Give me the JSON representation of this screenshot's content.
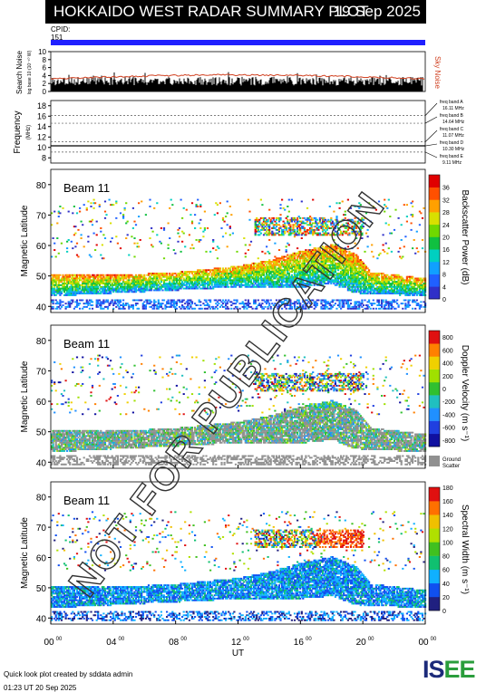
{
  "header": {
    "title": "HOKKAIDO WEST RADAR SUMMARY PLOT",
    "date": "19 Sep 2025",
    "cpid_label": "CPID:",
    "cpid_value": "151"
  },
  "watermark": "NOT FOR PUBLICATION",
  "noise_panel": {
    "ylabel": "Search Noise",
    "ylabel_small": "log base 10 (10⁻¹⁰ W)",
    "yticks": [
      "0",
      "2",
      "4",
      "6",
      "8",
      "10"
    ],
    "sky_label": "Sky Noise"
  },
  "freq_panel": {
    "ylabel": "Frequency",
    "unit": "(MHz)",
    "yticks": [
      "8",
      "10",
      "12",
      "14",
      "16",
      "18"
    ],
    "bands": [
      {
        "name": "freq band A",
        "value": "16.11 MHz"
      },
      {
        "name": "freq band B",
        "value": "14.64 MHz"
      },
      {
        "name": "freq band C",
        "value": "11.07 MHz"
      },
      {
        "name": "freq band D",
        "value": "10.30 MHz"
      },
      {
        "name": "freq band E",
        "value": "9.11 MHz"
      }
    ]
  },
  "panels": [
    {
      "beam": "Beam 11",
      "ylabel": "Magnetic Latitude",
      "cbar_label": "Backscatter Power (dB)",
      "cbar_ticks": [
        "0",
        "4",
        "8",
        "12",
        "16",
        "20",
        "24",
        "28",
        "32",
        "36"
      ]
    },
    {
      "beam": "Beam 11",
      "ylabel": "Magnetic Latitude",
      "cbar_label": "Doppler Velocity (m s⁻¹)",
      "cbar_ticks": [
        "800",
        "600",
        "400",
        "200",
        "0",
        "-200",
        "-400",
        "-600",
        "-800"
      ],
      "ground_label": [
        "Ground",
        "Scatter"
      ]
    },
    {
      "beam": "Beam 11",
      "ylabel": "Magnetic Latitude",
      "cbar_label": "Spectral Width (m s⁻¹)",
      "cbar_ticks": [
        "0",
        "20",
        "40",
        "60",
        "80",
        "100",
        "120",
        "140",
        "160",
        "180"
      ]
    }
  ],
  "chart_data": {
    "type": "heatmap",
    "xlabel": "UT",
    "x_ticks": [
      "00",
      "04",
      "08",
      "12",
      "16",
      "20",
      "00"
    ],
    "x_tick_sup": "00",
    "y_ticks": [
      "40",
      "50",
      "60",
      "70",
      "80"
    ],
    "xlim_hours": [
      0,
      24
    ],
    "ylim": [
      38,
      85
    ],
    "scatter_band_lower_edge": {
      "hours": [
        0,
        4,
        8,
        12,
        16,
        18,
        19.5,
        24
      ],
      "mlat": [
        44,
        45,
        46,
        47,
        47,
        48,
        45,
        44
      ]
    },
    "scatter_band_upper_edge": {
      "hours": [
        0,
        4,
        8,
        12,
        14,
        16,
        18,
        19.5,
        20.5,
        24
      ],
      "mlat": [
        50,
        50,
        51,
        53,
        55,
        58,
        60,
        57,
        51,
        49
      ]
    },
    "high_lat_patch_mlat": [
      63,
      69
    ],
    "spectral_width_high_patch": {
      "hours": [
        17,
        21
      ],
      "mlat": [
        64,
        70
      ]
    }
  },
  "footer": {
    "credit": "Quick look plot created by sddata admin",
    "timestamp": "01:23 UT 20 Sep 2025",
    "logo_a": "IS",
    "logo_b": "EE"
  },
  "colors": {
    "power_scale": [
      "#3030c8",
      "#2060ff",
      "#10a0ff",
      "#00d0c0",
      "#10c040",
      "#70d800",
      "#d8e000",
      "#ffa000",
      "#ff5000",
      "#e00000"
    ],
    "velocity_scale": [
      "#1010a0",
      "#2040e0",
      "#2090ff",
      "#20c0c0",
      "#30c030",
      "#a0e000",
      "#f0d000",
      "#ff8000",
      "#e01010"
    ],
    "width_scale": [
      "#202080",
      "#1050f0",
      "#10b0ff",
      "#10c070",
      "#40c020",
      "#b0e000",
      "#f0c000",
      "#ff7000",
      "#e01010"
    ],
    "ground": "#909090",
    "cpid_bar": "#2020ff",
    "noise_line": "#d04020"
  }
}
